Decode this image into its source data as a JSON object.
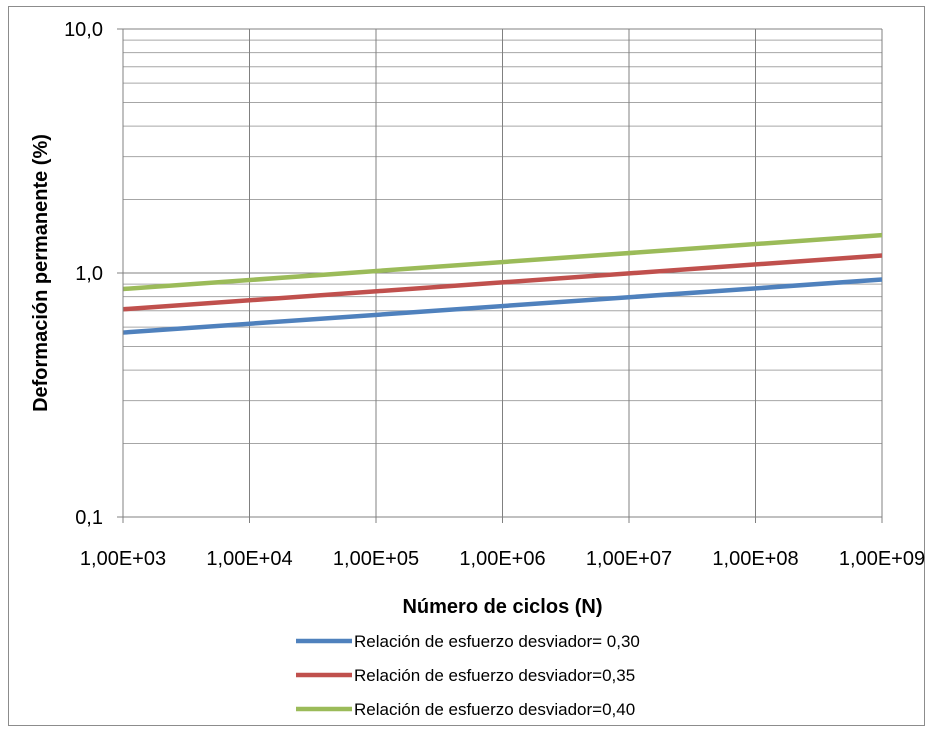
{
  "chart_data": {
    "type": "line",
    "title": "",
    "xlabel": "Número de ciclos (N)",
    "ylabel": "Deformación permanente (%)",
    "x_scale": "log",
    "y_scale": "log",
    "xlim": [
      1000,
      1000000000
    ],
    "ylim": [
      0.1,
      10
    ],
    "x_tick_values": [
      1000,
      10000,
      100000,
      1000000,
      10000000,
      100000000,
      1000000000
    ],
    "x_tick_labels": [
      "1,00E+03",
      "1,00E+04",
      "1,00E+05",
      "1,00E+06",
      "1,00E+07",
      "1,00E+08",
      "1,00E+09"
    ],
    "y_tick_values": [
      0.1,
      1,
      10
    ],
    "y_tick_labels": [
      "0,1",
      "1,0",
      "10,0"
    ],
    "grid": true,
    "legend_position": "bottom",
    "series": [
      {
        "name": "Relación de esfuerzo desviador= 0,30",
        "color": "#4f81bd",
        "x": [
          1000,
          1000000000
        ],
        "y": [
          0.57,
          0.94
        ]
      },
      {
        "name": "Relación de esfuerzo desviador=0,35",
        "color": "#c0504d",
        "x": [
          1000,
          1000000000
        ],
        "y": [
          0.71,
          1.18
        ]
      },
      {
        "name": "Relación de esfuerzo desviador=0,40",
        "color": "#9bbb59",
        "x": [
          1000,
          1000000000
        ],
        "y": [
          0.86,
          1.43
        ]
      }
    ]
  }
}
